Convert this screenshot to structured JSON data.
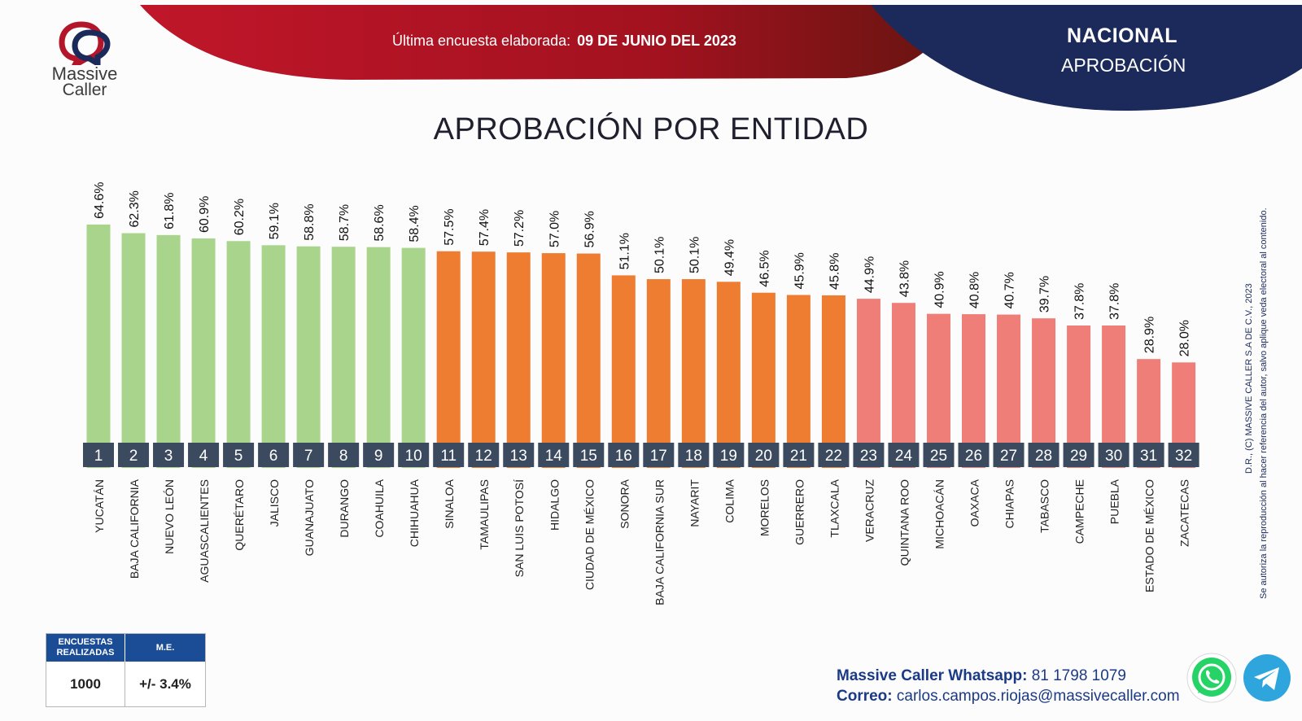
{
  "header": {
    "survey_label": "Última encuesta elaborada:",
    "survey_date": "09 DE JUNIO DEL 2023",
    "scope_title": "NACIONAL",
    "scope_subtitle": "APROBACIÓN",
    "colors": {
      "red": "#b3162a",
      "navy": "#1b2a5a"
    }
  },
  "logo": {
    "word1": "Massive",
    "word2": "Caller"
  },
  "title": "APROBACIÓN POR ENTIDAD",
  "chart_data": {
    "type": "bar",
    "categories": [
      "YUCATÁN",
      "BAJA CALIFORNIA",
      "NUEVO LEÓN",
      "AGUASCALIENTES",
      "QUERÉTARO",
      "JALISCO",
      "GUANAJUATO",
      "DURANGO",
      "COAHUILA",
      "CHIHUAHUA",
      "SINALOA",
      "TAMAULIPAS",
      "SAN LUIS POTOSÍ",
      "HIDALGO",
      "CIUDAD DE MÉXICO",
      "SONORA",
      "BAJA CALIFORNIA SUR",
      "NAYARIT",
      "COLIMA",
      "MORELOS",
      "GUERRERO",
      "TLAXCALA",
      "VERACRUZ",
      "QUINTANA ROO",
      "MICHOACÁN",
      "OAXACA",
      "CHIAPAS",
      "TABASCO",
      "CAMPECHE",
      "PUEBLA",
      "ESTADO DE MÉXICO",
      "ZACATECAS"
    ],
    "values": [
      64.6,
      62.3,
      61.8,
      60.9,
      60.2,
      59.1,
      58.8,
      58.7,
      58.6,
      58.4,
      57.5,
      57.4,
      57.2,
      57.0,
      56.9,
      51.1,
      50.1,
      50.1,
      49.4,
      46.5,
      45.9,
      45.8,
      44.9,
      43.8,
      40.9,
      40.8,
      40.7,
      39.7,
      37.8,
      37.8,
      28.9,
      28.0
    ],
    "value_labels": [
      "64.6%",
      "62.3%",
      "61.8%",
      "60.9%",
      "60.2%",
      "59.1%",
      "58.8%",
      "58.7%",
      "58.6%",
      "58.4%",
      "57.5%",
      "57.4%",
      "57.2%",
      "57.0%",
      "56.9%",
      "51.1%",
      "50.1%",
      "50.1%",
      "49.4%",
      "46.5%",
      "45.9%",
      "45.8%",
      "44.9%",
      "43.8%",
      "40.9%",
      "40.8%",
      "40.7%",
      "39.7%",
      "37.8%",
      "37.8%",
      "28.9%",
      "28.0%"
    ],
    "ranks": [
      "1",
      "2",
      "3",
      "4",
      "5",
      "6",
      "7",
      "8",
      "9",
      "10",
      "11",
      "12",
      "13",
      "14",
      "15",
      "16",
      "17",
      "18",
      "19",
      "20",
      "21",
      "22",
      "23",
      "24",
      "25",
      "26",
      "27",
      "28",
      "29",
      "30",
      "31",
      "32"
    ],
    "unit": "%",
    "ylim": [
      0,
      70
    ],
    "groups": [
      {
        "from": 1,
        "to": 10,
        "color": "#a8d48c"
      },
      {
        "from": 11,
        "to": 22,
        "color": "#ee7d31"
      },
      {
        "from": 23,
        "to": 32,
        "color": "#f07e78"
      }
    ],
    "rank_badge_color": "#3b4a5e",
    "grid": false,
    "legend": "none"
  },
  "copyright": {
    "line1": "D.R., (C) MASSIVE CALLER S.A DE C.V., 2023",
    "line2": "Se autoriza la reproducción al hacer referencia del autor, salvo aplique veda electoral al contenido."
  },
  "stats_table": {
    "header_surveys": "ENCUESTAS REALIZADAS",
    "header_me": "M.E.",
    "surveys": "1000",
    "me": "+/- 3.4%",
    "header_color": "#1a4d96"
  },
  "contact": {
    "whatsapp_label": "Massive Caller Whatsapp:",
    "whatsapp_number": "81 1798 1079",
    "email_label": "Correo:",
    "email": "carlos.campos.riojas@massivecaller.com"
  },
  "icons": {
    "whatsapp": "whatsapp-icon",
    "telegram": "telegram-icon"
  }
}
